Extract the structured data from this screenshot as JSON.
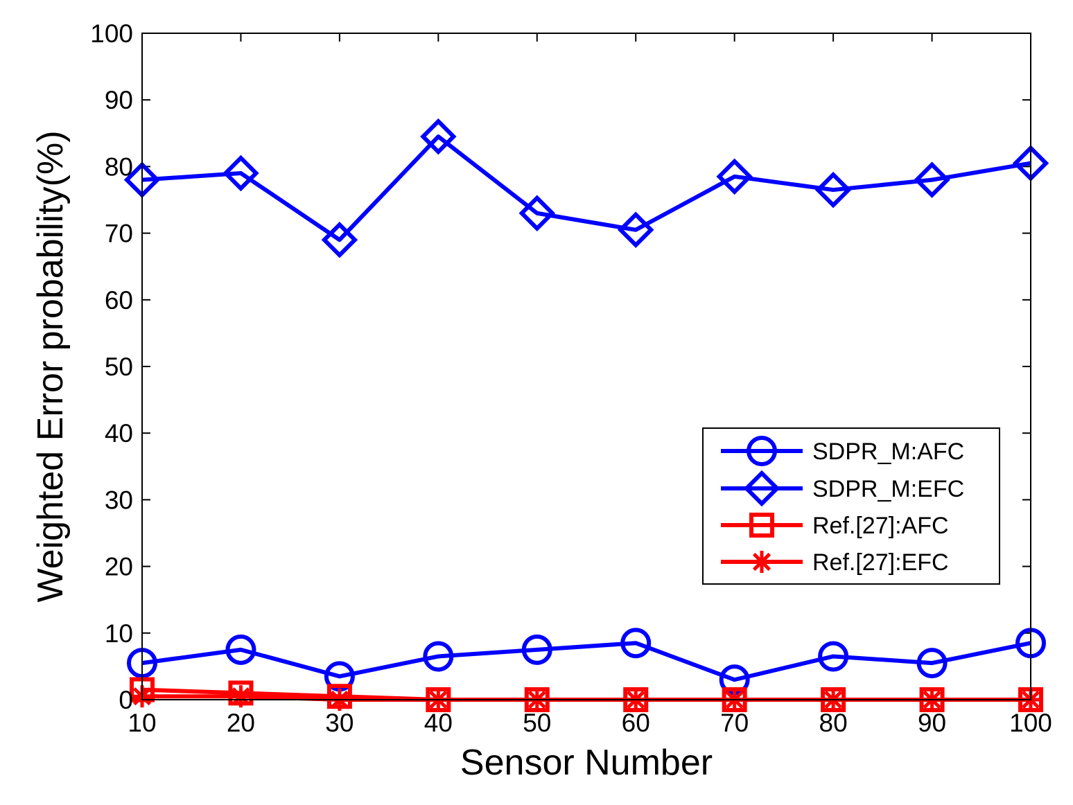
{
  "chart_data": {
    "type": "line",
    "title": "",
    "xlabel": "Sensor Number",
    "ylabel": "Weighted Error probability(%)",
    "x": [
      10,
      20,
      30,
      40,
      50,
      60,
      70,
      80,
      90,
      100
    ],
    "xlim": [
      10,
      100
    ],
    "ylim": [
      0,
      100
    ],
    "xticks": [
      "10",
      "20",
      "30",
      "40",
      "50",
      "60",
      "70",
      "80",
      "90",
      "100"
    ],
    "yticks": [
      "0",
      "10",
      "20",
      "30",
      "40",
      "50",
      "60",
      "70",
      "80",
      "90",
      "100"
    ],
    "grid": false,
    "legend_position": "right-middle",
    "series": [
      {
        "name": "SDPR_M:AFC",
        "color": "#0000ff",
        "marker": "circle",
        "values": [
          5.5,
          7.5,
          3.5,
          6.5,
          7.5,
          8.5,
          3.0,
          6.5,
          5.5,
          8.5
        ]
      },
      {
        "name": "SDPR_M:EFC",
        "color": "#0000ff",
        "marker": "diamond",
        "values": [
          78.0,
          79.0,
          69.0,
          84.5,
          73.0,
          70.5,
          78.5,
          76.5,
          78.0,
          80.5
        ]
      },
      {
        "name": "Ref.[27]:AFC",
        "color": "#ff0000",
        "marker": "square",
        "values": [
          1.5,
          1.0,
          0.5,
          0.0,
          0.0,
          0.0,
          0.0,
          0.0,
          0.0,
          0.0
        ]
      },
      {
        "name": "Ref.[27]:EFC",
        "color": "#ff0000",
        "marker": "asterisk",
        "values": [
          0.5,
          0.5,
          0.0,
          0.0,
          0.0,
          0.0,
          0.0,
          0.0,
          0.0,
          0.0
        ]
      }
    ]
  }
}
